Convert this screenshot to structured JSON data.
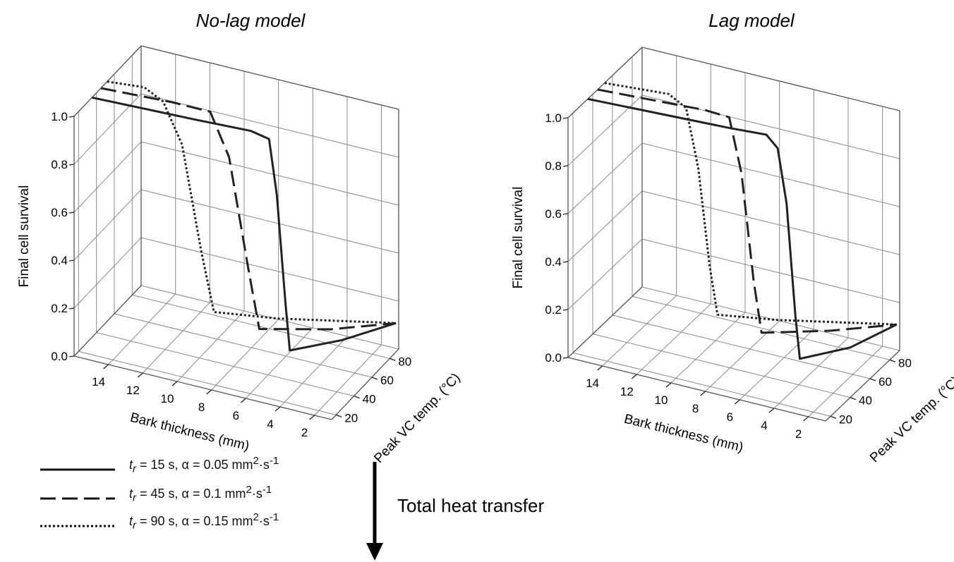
{
  "legend": [
    {
      "label_html": "t<sub>r</sub> = 15 s, α = 0.05 mm<sup>2</sup>·s<sup>-1</sup>",
      "style": "solid"
    },
    {
      "label_html": "t<sub>r</sub> = 45 s, α = 0.1 mm<sup>2</sup>·s<sup>-1</sup>",
      "style": "dashed"
    },
    {
      "label_html": "t<sub>r</sub> = 90 s, α = 0.15 mm<sup>2</sup>·s<sup>-1</sup>",
      "style": "dotted"
    }
  ],
  "heat_transfer_label": "Total heat transfer",
  "chart_data": [
    {
      "type": "line3d",
      "title": "No-lag model",
      "xlabel": "Bark thickness (mm)",
      "ylabel": "Peak VC temp. (°C)",
      "zlabel": "Final cell survival",
      "x_ticks": [
        "14",
        "12",
        "10",
        "8",
        "6",
        "4",
        "2"
      ],
      "y_ticks": [
        "20",
        "40",
        "60",
        "80"
      ],
      "z_ticks": [
        "0.0",
        "0.2",
        "0.4",
        "0.6",
        "0.8",
        "1.0"
      ],
      "xlim": [
        16,
        1
      ],
      "ylim": [
        15,
        90
      ],
      "zlim": [
        0,
        1
      ],
      "series": [
        {
          "style": "solid",
          "points": [
            {
              "thickness": 16,
              "peak_temp": 35,
              "survival": 1.0
            },
            {
              "thickness": 10,
              "peak_temp": 38,
              "survival": 1.0
            },
            {
              "thickness": 7,
              "peak_temp": 40,
              "survival": 1.0
            },
            {
              "thickness": 6,
              "peak_temp": 41,
              "survival": 0.98
            },
            {
              "thickness": 5.6,
              "peak_temp": 42,
              "survival": 0.75
            },
            {
              "thickness": 5.2,
              "peak_temp": 44,
              "survival": 0.3
            },
            {
              "thickness": 5,
              "peak_temp": 45,
              "survival": 0.1
            },
            {
              "thickness": 3,
              "peak_temp": 65,
              "survival": 0.1
            },
            {
              "thickness": 1,
              "peak_temp": 87,
              "survival": 0.12
            }
          ]
        },
        {
          "style": "dashed",
          "points": [
            {
              "thickness": 16,
              "peak_temp": 45,
              "survival": 1.0
            },
            {
              "thickness": 12,
              "peak_temp": 48,
              "survival": 1.0
            },
            {
              "thickness": 10,
              "peak_temp": 52,
              "survival": 0.98
            },
            {
              "thickness": 9,
              "peak_temp": 54,
              "survival": 0.8
            },
            {
              "thickness": 8,
              "peak_temp": 56,
              "survival": 0.35
            },
            {
              "thickness": 7.4,
              "peak_temp": 57,
              "survival": 0.1
            },
            {
              "thickness": 4,
              "peak_temp": 72,
              "survival": 0.1
            },
            {
              "thickness": 1,
              "peak_temp": 87,
              "survival": 0.12
            }
          ]
        },
        {
          "style": "dotted",
          "points": [
            {
              "thickness": 16,
              "peak_temp": 52,
              "survival": 1.0
            },
            {
              "thickness": 14,
              "peak_temp": 55,
              "survival": 1.0
            },
            {
              "thickness": 13,
              "peak_temp": 57,
              "survival": 0.95
            },
            {
              "thickness": 12,
              "peak_temp": 59,
              "survival": 0.78
            },
            {
              "thickness": 11,
              "peak_temp": 61,
              "survival": 0.35
            },
            {
              "thickness": 10.3,
              "peak_temp": 62,
              "survival": 0.1
            },
            {
              "thickness": 7,
              "peak_temp": 70,
              "survival": 0.1
            },
            {
              "thickness": 1,
              "peak_temp": 87,
              "survival": 0.12
            }
          ]
        }
      ]
    },
    {
      "type": "line3d",
      "title": "Lag model",
      "xlabel": "Bark thickness (mm)",
      "ylabel": "Peak VC temp. (°C)",
      "zlabel": "Final cell survival",
      "x_ticks": [
        "14",
        "12",
        "10",
        "8",
        "6",
        "4",
        "2"
      ],
      "y_ticks": [
        "20",
        "40",
        "60",
        "80"
      ],
      "z_ticks": [
        "0.0",
        "0.2",
        "0.4",
        "0.6",
        "0.8",
        "1.0"
      ],
      "xlim": [
        16,
        1
      ],
      "ylim": [
        15,
        90
      ],
      "zlim": [
        0,
        1
      ],
      "series": [
        {
          "style": "solid",
          "points": [
            {
              "thickness": 16,
              "peak_temp": 35,
              "survival": 1.0
            },
            {
              "thickness": 8,
              "peak_temp": 40,
              "survival": 1.0
            },
            {
              "thickness": 6,
              "peak_temp": 42,
              "survival": 1.0
            },
            {
              "thickness": 5.4,
              "peak_temp": 43,
              "survival": 0.95
            },
            {
              "thickness": 5,
              "peak_temp": 45,
              "survival": 0.72
            },
            {
              "thickness": 4.6,
              "peak_temp": 47,
              "survival": 0.25
            },
            {
              "thickness": 4.4,
              "peak_temp": 48,
              "survival": 0.07
            },
            {
              "thickness": 2.5,
              "peak_temp": 66,
              "survival": 0.08
            },
            {
              "thickness": 1,
              "peak_temp": 87,
              "survival": 0.12
            }
          ]
        },
        {
          "style": "dashed",
          "points": [
            {
              "thickness": 16,
              "peak_temp": 45,
              "survival": 1.0
            },
            {
              "thickness": 10,
              "peak_temp": 50,
              "survival": 1.0
            },
            {
              "thickness": 8.8,
              "peak_temp": 53,
              "survival": 0.98
            },
            {
              "thickness": 8.2,
              "peak_temp": 55,
              "survival": 0.75
            },
            {
              "thickness": 7.6,
              "peak_temp": 57,
              "survival": 0.3
            },
            {
              "thickness": 7.2,
              "peak_temp": 58,
              "survival": 0.09
            },
            {
              "thickness": 4,
              "peak_temp": 72,
              "survival": 0.1
            },
            {
              "thickness": 1,
              "peak_temp": 87,
              "survival": 0.12
            }
          ]
        },
        {
          "style": "dotted",
          "points": [
            {
              "thickness": 16,
              "peak_temp": 52,
              "survival": 1.0
            },
            {
              "thickness": 12.5,
              "peak_temp": 56,
              "survival": 1.0
            },
            {
              "thickness": 11.6,
              "peak_temp": 58,
              "survival": 0.95
            },
            {
              "thickness": 11,
              "peak_temp": 60,
              "survival": 0.7
            },
            {
              "thickness": 10.4,
              "peak_temp": 61,
              "survival": 0.3
            },
            {
              "thickness": 10,
              "peak_temp": 62,
              "survival": 0.1
            },
            {
              "thickness": 7,
              "peak_temp": 70,
              "survival": 0.1
            },
            {
              "thickness": 1,
              "peak_temp": 87,
              "survival": 0.12
            }
          ]
        }
      ]
    }
  ]
}
